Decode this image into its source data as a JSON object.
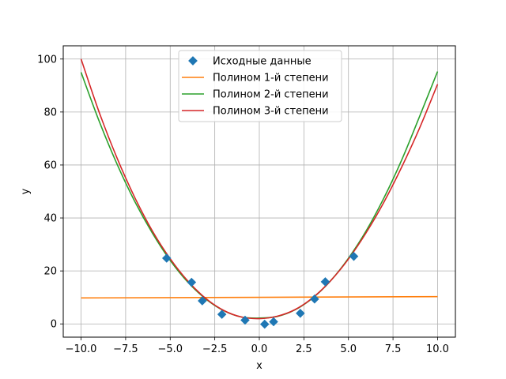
{
  "chart_data": {
    "type": "line",
    "title": "",
    "xlabel": "x",
    "ylabel": "y",
    "xlim": [
      -11,
      11
    ],
    "ylim": [
      -5,
      105
    ],
    "grid": true,
    "legend_position": "upper-center",
    "x_ticks": [
      -10.0,
      -7.5,
      -5.0,
      -2.5,
      0.0,
      2.5,
      5.0,
      7.5,
      10.0
    ],
    "x_tick_labels": [
      "−10.0",
      "−7.5",
      "−5.0",
      "−2.5",
      "0.0",
      "2.5",
      "5.0",
      "7.5",
      "10.0"
    ],
    "y_ticks": [
      0,
      20,
      40,
      60,
      80,
      100
    ],
    "y_tick_labels": [
      "0",
      "20",
      "40",
      "60",
      "80",
      "100"
    ],
    "series": [
      {
        "name": "Исходные данные",
        "kind": "scatter",
        "marker": "diamond",
        "color": "#1f77b4",
        "x": [
          -5.2,
          -3.8,
          -3.2,
          -2.1,
          -0.8,
          0.3,
          0.8,
          2.3,
          3.1,
          3.7,
          5.3
        ],
        "y": [
          24.8,
          15.7,
          8.7,
          3.6,
          1.4,
          -0.1,
          0.8,
          4.0,
          9.4,
          15.9,
          25.5
        ]
      },
      {
        "name": "Полином 1-й степени",
        "kind": "line",
        "color": "#ff7f0e",
        "x": [
          -10,
          10
        ],
        "y": [
          9.8,
          10.3
        ]
      },
      {
        "name": "Полином 2-й степени",
        "kind": "line",
        "color": "#2ca02c",
        "x": [
          -10,
          -9,
          -8,
          -7,
          -6,
          -5,
          -4,
          -3,
          -2,
          -1,
          0,
          1,
          2,
          3,
          4,
          5,
          6,
          7,
          8,
          9,
          10
        ],
        "y": [
          95.0,
          76.8,
          60.6,
          46.4,
          34.3,
          24.0,
          15.7,
          9.4,
          5.0,
          2.6,
          2.2,
          2.8,
          5.3,
          9.8,
          16.3,
          24.8,
          35.2,
          47.7,
          62.1,
          78.5,
          95.3
        ]
      },
      {
        "name": "Полином 3-й степени",
        "kind": "line",
        "color": "#d62728",
        "x": [
          -10,
          -9,
          -8,
          -7,
          -6,
          -5,
          -4,
          -3,
          -2,
          -1,
          0,
          1,
          2,
          3,
          4,
          5,
          6,
          7,
          8,
          9,
          10
        ],
        "y": [
          100.0,
          80.2,
          62.9,
          47.9,
          35.1,
          24.6,
          16.1,
          9.6,
          5.1,
          2.6,
          2.0,
          2.9,
          5.4,
          9.9,
          16.3,
          24.5,
          34.5,
          46.1,
          59.4,
          74.1,
          90.5
        ]
      }
    ]
  }
}
